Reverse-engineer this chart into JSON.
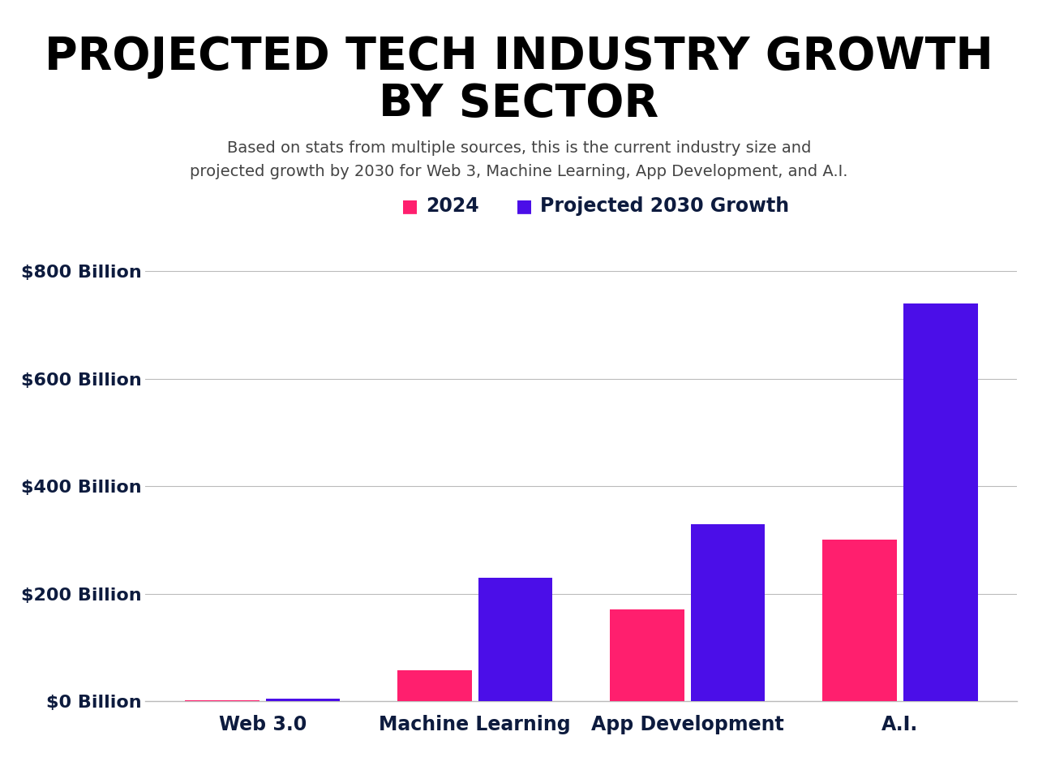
{
  "title_line1": "PROJECTED TECH INDUSTRY GROWTH",
  "title_line2": "BY SECTOR",
  "subtitle_line1": "Based on stats from multiple sources, this is the current industry size and",
  "subtitle_line2": "projected growth by 2030 for Web 3, Machine Learning, App Development, and A.I.",
  "categories": [
    "Web 3.0",
    "Machine Learning",
    "App Development",
    "A.I."
  ],
  "values_2024": [
    2,
    57,
    170,
    300
  ],
  "values_2030": [
    5,
    230,
    330,
    740
  ],
  "color_2024": "#FF1F6E",
  "color_2030": "#4B0EE8",
  "legend_2024": "2024",
  "legend_2030": "Projected 2030 Growth",
  "ylabel_ticks": [
    "$0 Billion",
    "$200 Billion",
    "$400 Billion",
    "$600 Billion",
    "$800 Billion"
  ],
  "ytick_values": [
    0,
    200,
    400,
    600,
    800
  ],
  "ylim": [
    0,
    870
  ],
  "background_color": "#ffffff",
  "axis_label_color": "#0d1b3e",
  "grid_color": "#bbbbbb",
  "title_color": "#000000",
  "subtitle_color": "#444444",
  "title_fontsize": 40,
  "subtitle_fontsize": 14,
  "tick_fontsize": 16,
  "xtick_fontsize": 17
}
